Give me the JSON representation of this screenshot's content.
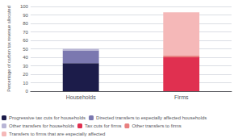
{
  "chart_data": {
    "type": "bar",
    "ylabel": "Percentage of carbon tax revenue allocated",
    "categories": [
      "Households",
      "Firms"
    ],
    "series": [
      {
        "name": "Progressive tax cuts for households",
        "color": "#1c1c4a",
        "values": [
          33,
          null
        ]
      },
      {
        "name": "Directed transfers to especially affected households",
        "color": "#7b78b0",
        "values": [
          15,
          null
        ]
      },
      {
        "name": "Other transfers for households",
        "color": "#b8b5d5",
        "values": [
          2,
          null
        ]
      },
      {
        "name": "Tax cuts for firms",
        "color": "#e03050",
        "values": [
          null,
          40
        ]
      },
      {
        "name": "Other transfers to firms",
        "color": "#e88080",
        "values": [
          null,
          2
        ]
      },
      {
        "name": "Transfers to firms that are especially affected",
        "color": "#f5b8b8",
        "values": [
          null,
          51
        ]
      }
    ],
    "ylim": [
      0,
      100
    ],
    "yticks": [
      0,
      10,
      20,
      30,
      40,
      50,
      60,
      70,
      80,
      90,
      100
    ],
    "grid": true,
    "stacked": true,
    "legend": "bottom"
  }
}
